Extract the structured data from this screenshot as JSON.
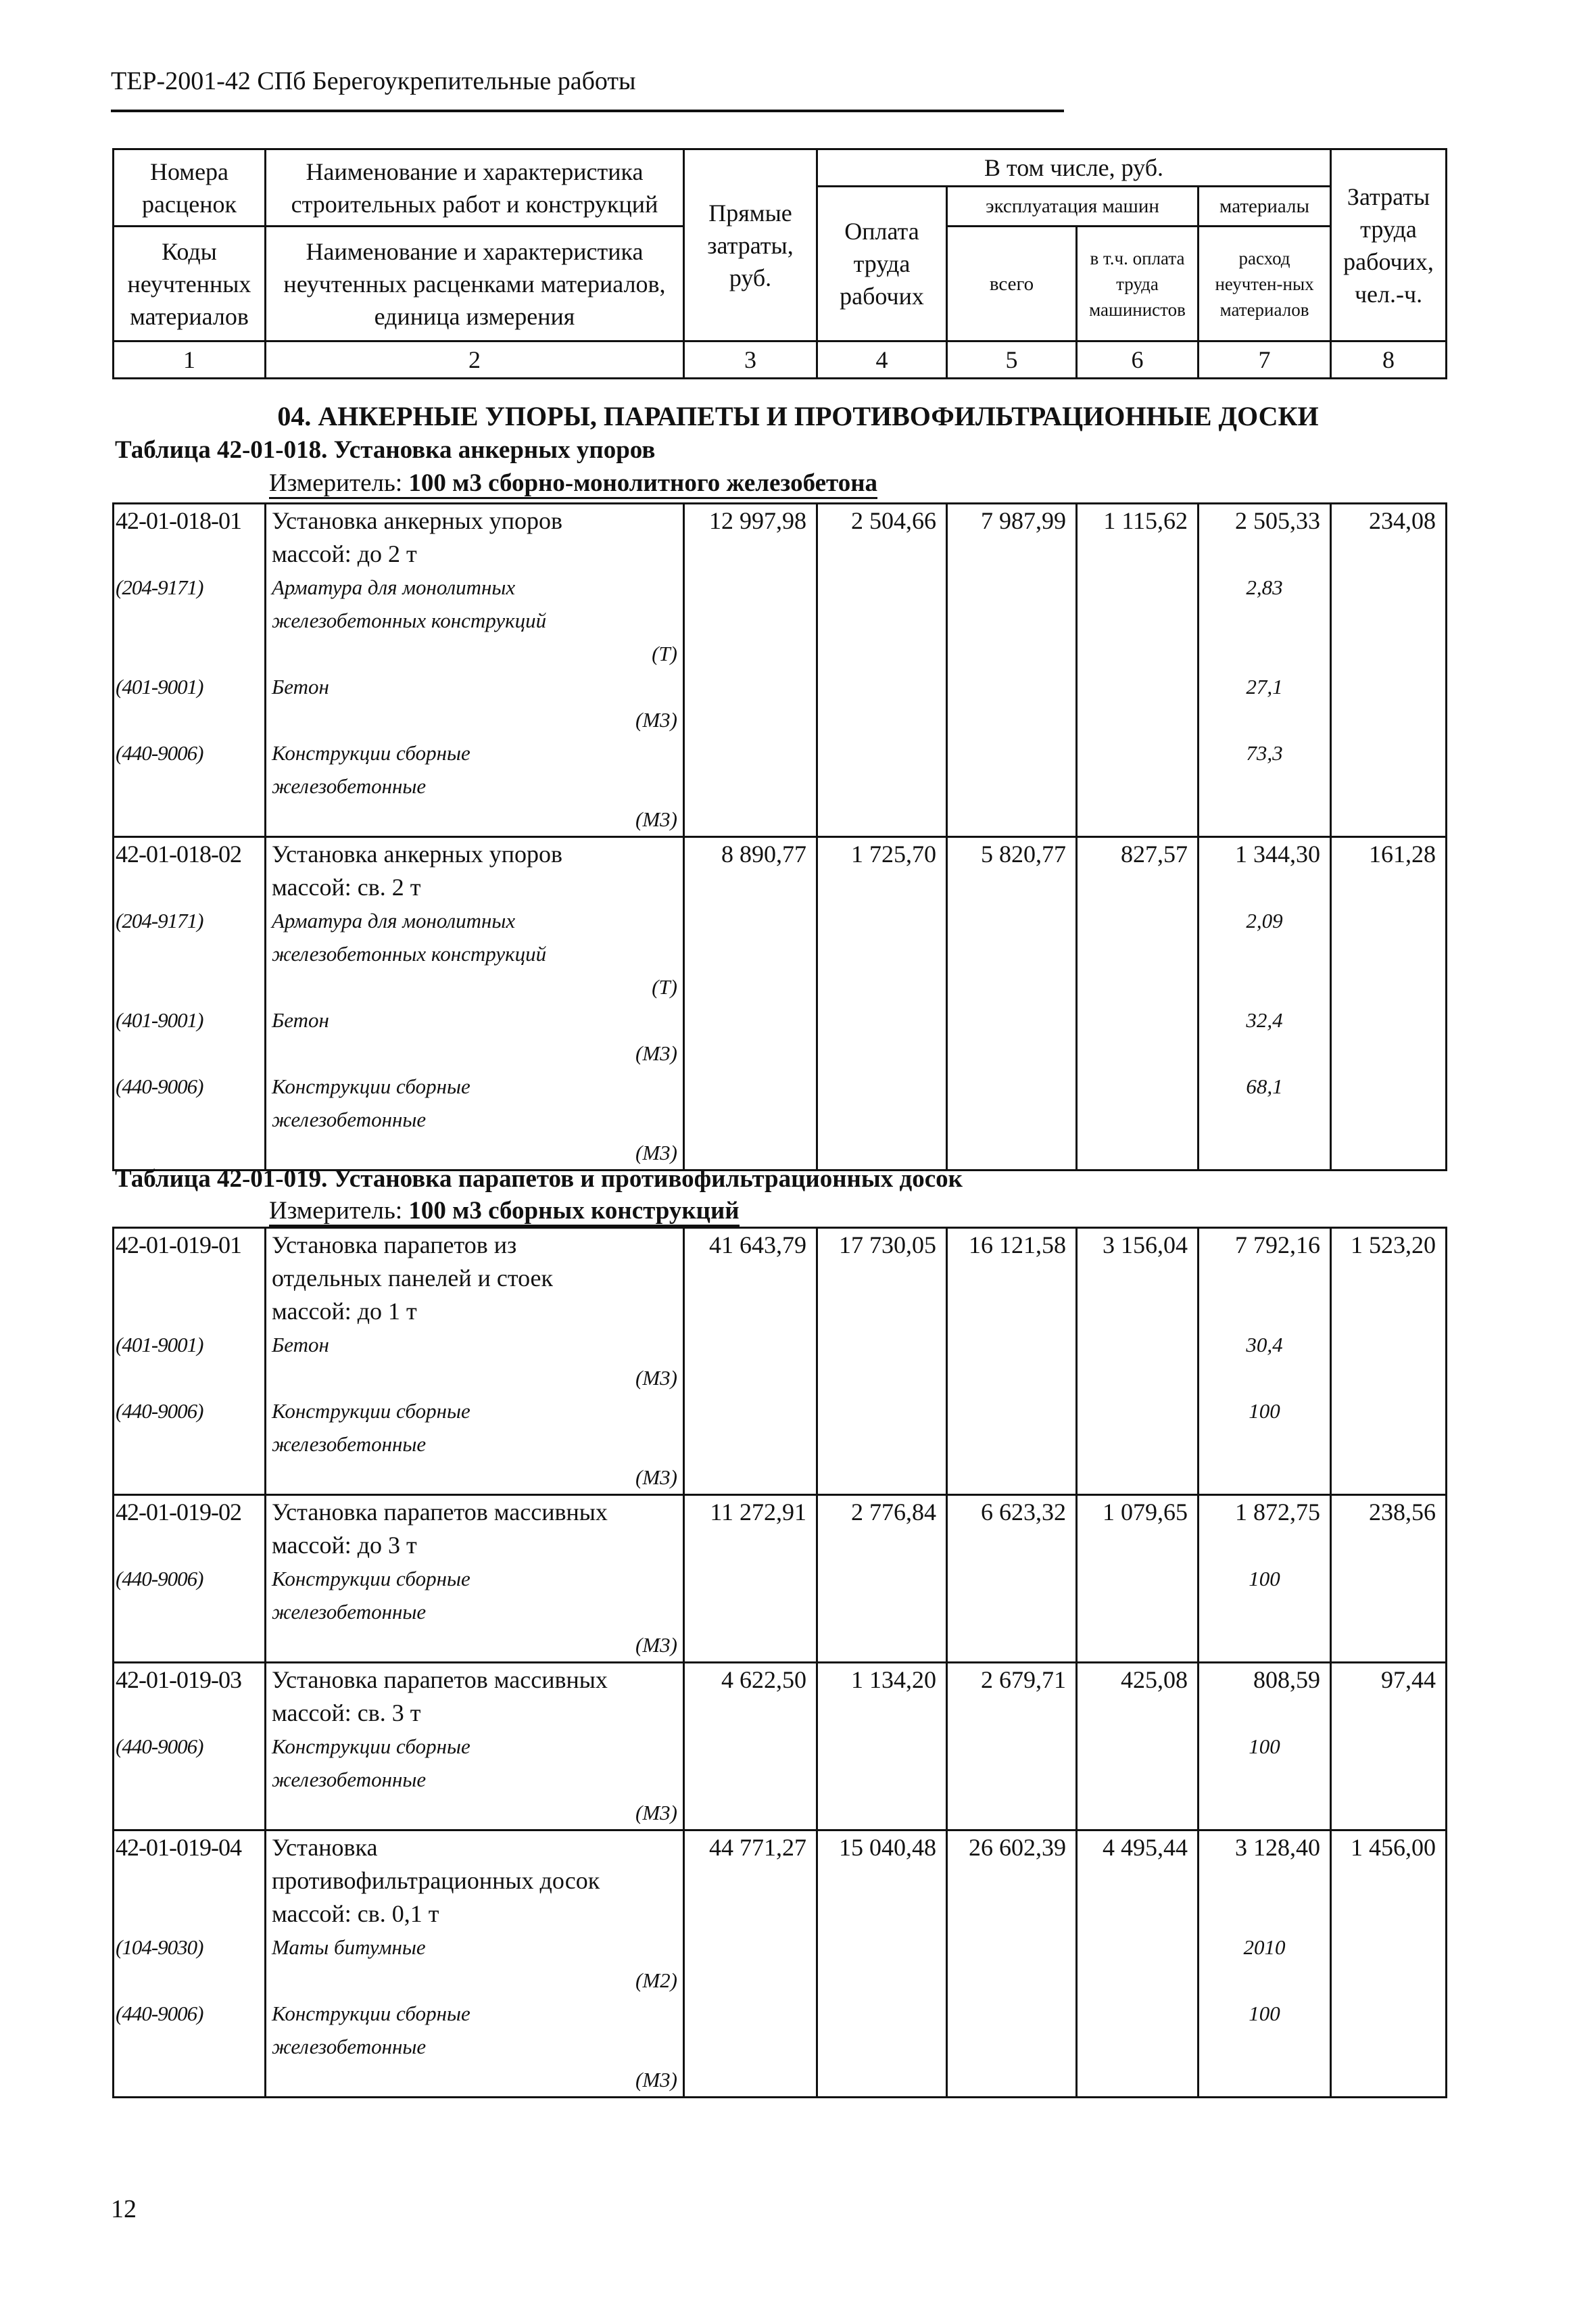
{
  "header": {
    "title": "ТЕР-2001-42 СПб Берегоукрепительные работы"
  },
  "columns": {
    "c1_top": "Номера расценок",
    "c1_bottom": "Коды неучтенных материалов",
    "c2_top": "Наименование и характеристика строительных работ и конструкций",
    "c2_bottom": "Наименование и характеристика неучтенных расценками материалов, единица измерения",
    "c3": "Прямые затраты, руб.",
    "group": "В том числе, руб.",
    "c4": "Оплата труда рабочих",
    "machines": "эксплуатация машин",
    "materials": "материалы",
    "c5": "всего",
    "c6": "в т.ч. оплата труда машинистов",
    "c7": "расход неучтен-ных материалов",
    "c8": "Затраты труда рабочих, чел.-ч.",
    "numbers": [
      "1",
      "2",
      "3",
      "4",
      "5",
      "6",
      "7",
      "8"
    ]
  },
  "section_title": "04. АНКЕРНЫЕ УПОРЫ, ПАРАПЕТЫ И ПРОТИВОФИЛЬТРАЦИОННЫЕ ДОСКИ",
  "tables": [
    {
      "caption_bold": "Таблица 42-01-018.",
      "caption_text": " Установка анкерных упоров",
      "measure_label": "Измеритель: ",
      "measure_value": "100 м3 сборно-монолитного железобетона",
      "rows": [
        {
          "code": "42-01-018-01",
          "name_lines": [
            "Установка анкерных упоров",
            "массой: до 2 т"
          ],
          "values": [
            "12 997,98",
            "2 504,66",
            "7 987,99",
            "1 115,62",
            "2 505,33",
            "234,08"
          ],
          "materials": [
            {
              "code": "(204-9171)",
              "name_lines": [
                "Арматура для монолитных",
                "железобетонных конструкций"
              ],
              "unit": "(Т)",
              "qty": "2,83"
            },
            {
              "code": "(401-9001)",
              "name_lines": [
                "Бетон"
              ],
              "unit": "(М3)",
              "qty": "27,1"
            },
            {
              "code": "(440-9006)",
              "name_lines": [
                "Конструкции сборные",
                "железобетонные"
              ],
              "unit": "(М3)",
              "qty": "73,3"
            }
          ]
        },
        {
          "code": "42-01-018-02",
          "name_lines": [
            "Установка анкерных упоров",
            "массой: св. 2 т"
          ],
          "values": [
            "8 890,77",
            "1 725,70",
            "5 820,77",
            "827,57",
            "1 344,30",
            "161,28"
          ],
          "materials": [
            {
              "code": "(204-9171)",
              "name_lines": [
                "Арматура для монолитных",
                "железобетонных конструкций"
              ],
              "unit": "(Т)",
              "qty": "2,09"
            },
            {
              "code": "(401-9001)",
              "name_lines": [
                "Бетон"
              ],
              "unit": "(М3)",
              "qty": "32,4"
            },
            {
              "code": "(440-9006)",
              "name_lines": [
                "Конструкции сборные",
                "железобетонные"
              ],
              "unit": "(М3)",
              "qty": "68,1"
            }
          ]
        }
      ]
    },
    {
      "caption_bold": "Таблица 42-01-019.",
      "caption_text": " Установка парапетов и противофильтрационных досок",
      "measure_label": "Измеритель: ",
      "measure_value": "100 м3 сборных конструкций",
      "rows": [
        {
          "code": "42-01-019-01",
          "name_lines": [
            "Установка парапетов из",
            "отдельных панелей и стоек",
            "массой: до 1 т"
          ],
          "values": [
            "41 643,79",
            "17 730,05",
            "16 121,58",
            "3 156,04",
            "7 792,16",
            "1 523,20"
          ],
          "materials": [
            {
              "code": "(401-9001)",
              "name_lines": [
                "Бетон"
              ],
              "unit": "(М3)",
              "qty": "30,4"
            },
            {
              "code": "(440-9006)",
              "name_lines": [
                "Конструкции сборные",
                "железобетонные"
              ],
              "unit": "(М3)",
              "qty": "100"
            }
          ]
        },
        {
          "code": "42-01-019-02",
          "name_lines": [
            "Установка парапетов массивных",
            "массой: до 3 т"
          ],
          "values": [
            "11 272,91",
            "2 776,84",
            "6 623,32",
            "1 079,65",
            "1 872,75",
            "238,56"
          ],
          "materials": [
            {
              "code": "(440-9006)",
              "name_lines": [
                "Конструкции сборные",
                "железобетонные"
              ],
              "unit": "(М3)",
              "qty": "100"
            }
          ]
        },
        {
          "code": "42-01-019-03",
          "name_lines": [
            "Установка парапетов массивных",
            "массой: св. 3 т"
          ],
          "values": [
            "4 622,50",
            "1 134,20",
            "2 679,71",
            "425,08",
            "808,59",
            "97,44"
          ],
          "materials": [
            {
              "code": "(440-9006)",
              "name_lines": [
                "Конструкции сборные",
                "железобетонные"
              ],
              "unit": "(М3)",
              "qty": "100"
            }
          ]
        },
        {
          "code": "42-01-019-04",
          "name_lines": [
            "Установка",
            "противофильтрационных досок",
            "массой: св. 0,1 т"
          ],
          "values": [
            "44 771,27",
            "15 040,48",
            "26 602,39",
            "4 495,44",
            "3 128,40",
            "1 456,00"
          ],
          "materials": [
            {
              "code": "(104-9030)",
              "name_lines": [
                "Маты битумные"
              ],
              "unit": "(М2)",
              "qty": "2010"
            },
            {
              "code": "(440-9006)",
              "name_lines": [
                "Конструкции сборные",
                "железобетонные"
              ],
              "unit": "(М3)",
              "qty": "100"
            }
          ]
        }
      ]
    }
  ],
  "footer": {
    "page_number": "12"
  }
}
